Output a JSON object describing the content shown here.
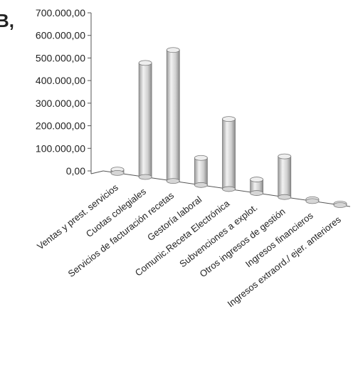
{
  "panel_label": "B,",
  "chart_data": {
    "type": "bar",
    "title": "",
    "xlabel": "",
    "ylabel": "",
    "ylim": [
      0,
      700000
    ],
    "yticks": [
      "700.000,00",
      "600.000,00",
      "500.000,00",
      "400.000,00",
      "300.000,00",
      "200.000,00",
      "100.000,00",
      "0,00"
    ],
    "ytick_values": [
      700000,
      600000,
      500000,
      400000,
      300000,
      200000,
      100000,
      0
    ],
    "categories": [
      "Ventas y prest. servicios",
      "Cuotas colegiales",
      "Servicios de facturación recetas",
      "Gestoría laboral",
      "Comunic.Receta Electrónica",
      "Subvenciones a explot.",
      "Otros ingresos de gestión",
      "Ingresos financieros",
      "Ingresos extraord./ ejer. anteriores"
    ],
    "values": [
      15000,
      505000,
      580000,
      120000,
      310000,
      60000,
      180000,
      8000,
      2000
    ],
    "grid": false,
    "legend": "none",
    "colors": {
      "bar": "#d6d6d6",
      "bar_edge": "#7a7a7a",
      "axis": "#555555"
    }
  }
}
